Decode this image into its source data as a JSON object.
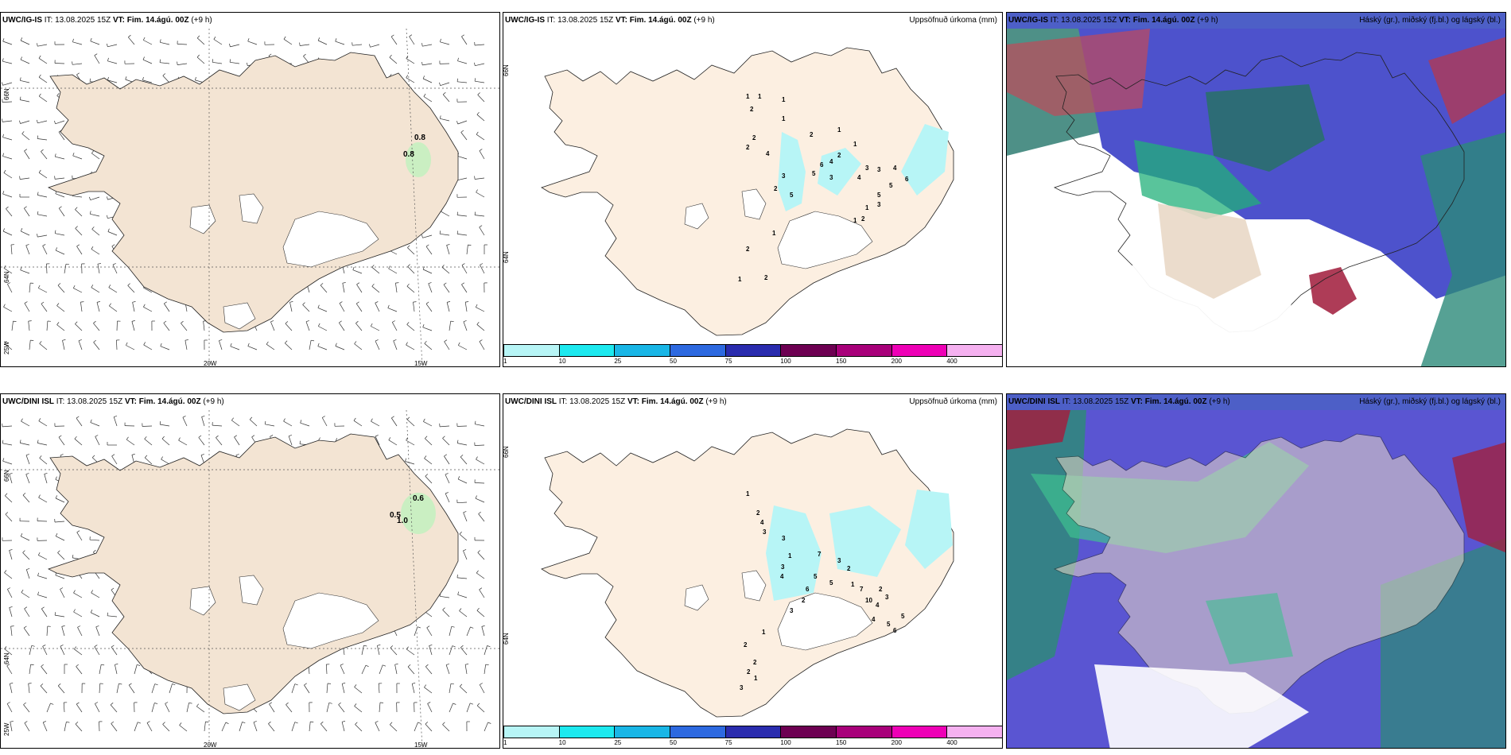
{
  "rows": [
    {
      "model": "UWC/IG-IS",
      "wind": {
        "header": {
          "model": "UWC/IG-IS",
          "it": "13.08.2025 15Z",
          "vt_label": "VT:",
          "vt": "Fim. 14.ágú. 00Z",
          "lead": "(+9 h)"
        },
        "lat_labels": [
          "66N",
          "64N",
          "25W"
        ],
        "lon_labels": [
          "20W",
          "15W"
        ],
        "values": [
          "0.8",
          "0.8"
        ]
      },
      "precip": {
        "header": {
          "model": "UWC/IG-IS",
          "it": "13.08.2025 15Z",
          "vt_label": "VT:",
          "vt": "Fim. 14.ágú. 00Z",
          "lead": "(+9 h)"
        },
        "title": "Uppsöfnuð úrkoma (mm)",
        "side_labels": [
          "66N",
          "64N"
        ],
        "values": [
          "1",
          "1",
          "1",
          "2",
          "1",
          "1",
          "2",
          "2",
          "2",
          "4",
          "1",
          "2",
          "6",
          "3",
          "5",
          "4",
          "3",
          "2",
          "4",
          "3",
          "3",
          "4",
          "5",
          "6",
          "5",
          "1",
          "1",
          "2",
          "3",
          "1",
          "5",
          "2",
          "1",
          "2"
        ]
      },
      "cloud": {
        "header": {
          "model": "UWC/IG-IS",
          "it": "13.08.2025 15Z",
          "vt_label": "VT:",
          "vt": "Fim. 14.ágú. 00Z",
          "lead": "(+9 h)"
        },
        "title": "Háský (gr.), miðský (fj.bl.) og lágský (bl.)"
      }
    },
    {
      "model": "UWC/DINI ISL",
      "wind": {
        "header": {
          "model": "UWC/DINI ISL",
          "it": "13.08.2025 15Z",
          "vt_label": "VT:",
          "vt": "Fim. 14.ágú. 00Z",
          "lead": "(+9 h)"
        },
        "lat_labels": [
          "66N",
          "64N",
          "25W"
        ],
        "lon_labels": [
          "20W",
          "15W"
        ],
        "values": [
          "0.6",
          "0.5",
          "1.0"
        ]
      },
      "precip": {
        "header": {
          "model": "UWC/DINI ISL",
          "it": "13.08.2025 15Z",
          "vt_label": "VT:",
          "vt": "Fim. 14.ágú. 00Z",
          "lead": "(+9 h)"
        },
        "title": "Uppsöfnuð úrkoma (mm)",
        "side_labels": [
          "66N",
          "64N"
        ],
        "values": [
          "1",
          "2",
          "4",
          "3",
          "3",
          "1",
          "3",
          "4",
          "7",
          "3",
          "5",
          "2",
          "1",
          "5",
          "7",
          "10",
          "6",
          "2",
          "3",
          "2",
          "4",
          "3",
          "4",
          "5",
          "6",
          "5",
          "1",
          "2",
          "2",
          "2",
          "3",
          "1"
        ]
      },
      "cloud": {
        "header": {
          "model": "UWC/DINI ISL",
          "it": "13.08.2025 15Z",
          "vt_label": "VT:",
          "vt": "Fim. 14.ágú. 00Z",
          "lead": "(+9 h)"
        },
        "title": "Háský (gr.), miðský (fj.bl.) og lágský (bl.)"
      }
    }
  ],
  "colorbar": {
    "ticks": [
      "1",
      "10",
      "25",
      "50",
      "75",
      "100",
      "150",
      "200",
      "400"
    ],
    "colors": [
      "#b7f5f6",
      "#1de9ef",
      "#19b6e6",
      "#2d69e0",
      "#2a2cae",
      "#6d0052",
      "#a8007a",
      "#ee00b6",
      "#f5b1f0"
    ]
  }
}
